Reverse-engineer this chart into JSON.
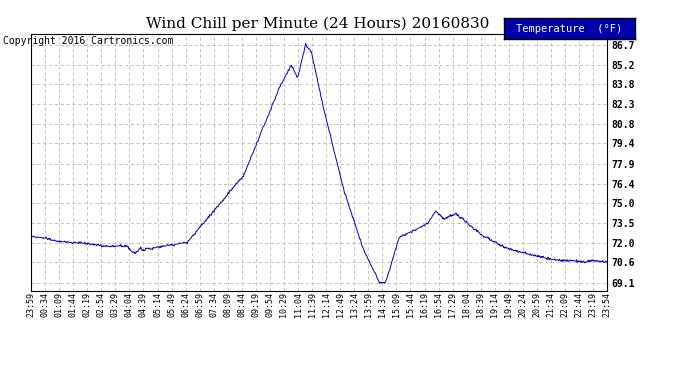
{
  "title": "Wind Chill per Minute (24 Hours) 20160830",
  "copyright": "Copyright 2016 Cartronics.com",
  "legend_label": "Temperature  (°F)",
  "line_color": "#0000CC",
  "background_color": "#ffffff",
  "grid_color": "#bbbbbb",
  "yticks": [
    69.1,
    70.6,
    72.0,
    73.5,
    75.0,
    76.4,
    77.9,
    79.4,
    80.8,
    82.3,
    83.8,
    85.2,
    86.7
  ],
  "ylim": [
    68.5,
    87.5
  ],
  "xtick_labels": [
    "23:59",
    "00:34",
    "01:09",
    "01:44",
    "02:19",
    "02:54",
    "03:29",
    "04:04",
    "04:39",
    "05:14",
    "05:49",
    "06:24",
    "06:59",
    "07:34",
    "08:09",
    "08:44",
    "09:19",
    "09:54",
    "10:29",
    "11:04",
    "11:39",
    "12:14",
    "12:49",
    "13:24",
    "13:59",
    "14:34",
    "15:09",
    "15:44",
    "16:19",
    "16:54",
    "17:29",
    "18:04",
    "18:39",
    "19:14",
    "19:49",
    "20:24",
    "20:59",
    "21:34",
    "22:09",
    "22:44",
    "23:19",
    "23:54"
  ],
  "legend_bg": "#0000AA",
  "title_fontsize": 11,
  "tick_fontsize": 7,
  "copyright_fontsize": 7
}
